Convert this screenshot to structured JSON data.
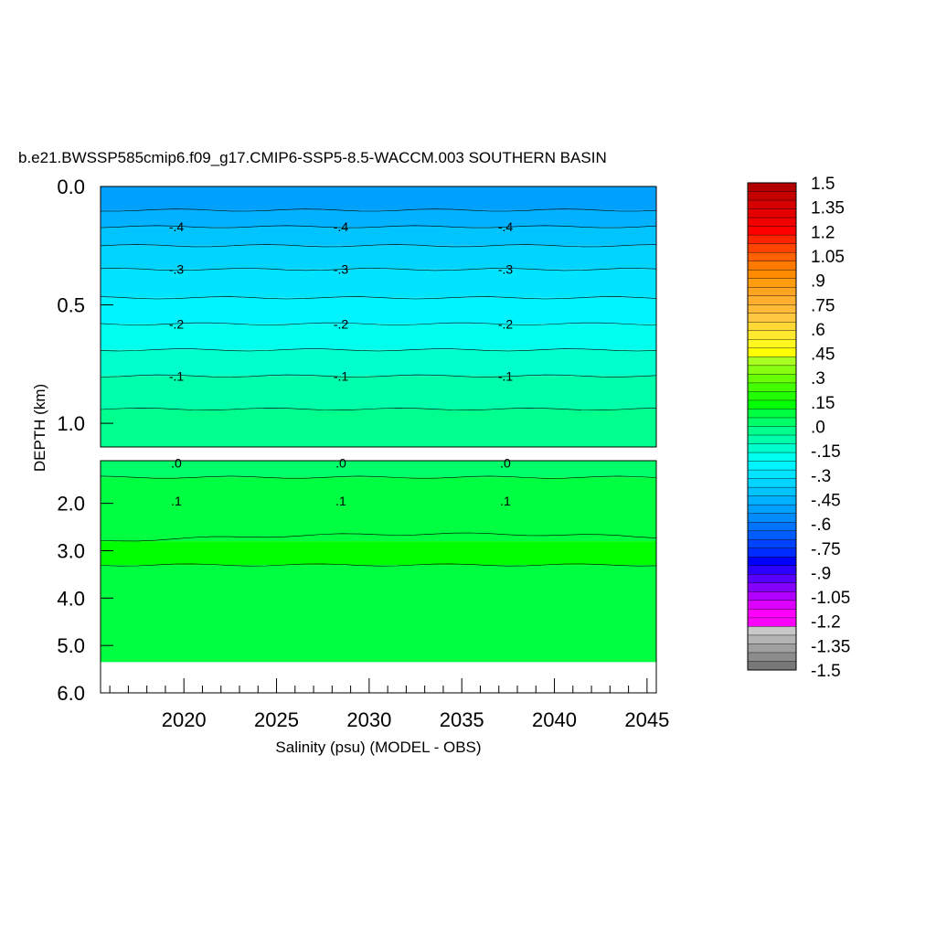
{
  "chart_data": {
    "type": "heatmap",
    "title": "b.e21.BWSSP585cmip6.f09_g17.CMIP6-SSP5-8.5-WACCM.003 SOUTHERN BASIN",
    "xlabel": "Salinity (psu) (MODEL - OBS)",
    "ylabel": "DEPTH (km)",
    "xlim": [
      2015.5,
      2045.5
    ],
    "x_ticks": [
      "2020",
      "2025",
      "2030",
      "2035",
      "2040",
      "2045"
    ],
    "upper_panel": {
      "ylim": [
        0,
        1.1
      ],
      "y_ticks": [
        "0.0",
        "0.5",
        "1.0"
      ]
    },
    "lower_panel": {
      "ylim": [
        1.1,
        6.0
      ],
      "y_ticks": [
        "2.0",
        "3.0",
        "4.0",
        "5.0",
        "6.0"
      ],
      "data_bottom_km": 5.35
    },
    "depth_bands_km": [
      {
        "from": 0.0,
        "to": 0.1,
        "value": -0.5
      },
      {
        "from": 0.1,
        "to": 0.17,
        "value": -0.45
      },
      {
        "from": 0.17,
        "to": 0.25,
        "value": -0.4
      },
      {
        "from": 0.25,
        "to": 0.35,
        "value": -0.35
      },
      {
        "from": 0.35,
        "to": 0.47,
        "value": -0.3
      },
      {
        "from": 0.47,
        "to": 0.58,
        "value": -0.25
      },
      {
        "from": 0.58,
        "to": 0.69,
        "value": -0.2
      },
      {
        "from": 0.69,
        "to": 0.8,
        "value": -0.15
      },
      {
        "from": 0.8,
        "to": 0.94,
        "value": -0.1
      },
      {
        "from": 0.94,
        "to": 1.1,
        "value": -0.05
      },
      {
        "from": 1.1,
        "to": 1.45,
        "value": 0.05
      },
      {
        "from": 1.45,
        "to": 2.8,
        "value": 0.1
      },
      {
        "from": 2.8,
        "to": 3.3,
        "value": 0.15
      },
      {
        "from": 3.3,
        "to": 5.35,
        "value": 0.1
      }
    ],
    "contour_labels": [
      {
        "text": "-.4",
        "depth_km": 0.17
      },
      {
        "text": "-.3",
        "depth_km": 0.35
      },
      {
        "text": "-.2",
        "depth_km": 0.58
      },
      {
        "text": "-.1",
        "depth_km": 0.8
      },
      {
        "text": ".0",
        "depth_km": 1.15
      },
      {
        "text": ".1",
        "depth_km": 1.95
      }
    ],
    "colorbar": {
      "tick_labels": [
        "1.5",
        "1.35",
        "1.2",
        "1.05",
        ".9",
        ".75",
        ".6",
        ".45",
        ".3",
        ".15",
        ".0",
        "-.15",
        "-.3",
        "-.45",
        "-.6",
        "-.75",
        "-.9",
        "-1.05",
        "-1.2",
        "-1.35",
        "-1.5"
      ],
      "colors": [
        "#b20000",
        "#c40000",
        "#d60000",
        "#e40000",
        "#f20000",
        "#ff0000",
        "#ff2400",
        "#ff4400",
        "#ff6000",
        "#ff7800",
        "#ff8c00",
        "#ff9c10",
        "#ffa420",
        "#ffae30",
        "#ffba38",
        "#ffc840",
        "#ffd838",
        "#ffe830",
        "#fff820",
        "#ffff00",
        "#a8ff20",
        "#88ff10",
        "#68ff00",
        "#44ff00",
        "#22ff00",
        "#00ff00",
        "#00ff40",
        "#00ff68",
        "#00ff8c",
        "#00ffaa",
        "#00ffcc",
        "#00ffee",
        "#00f4ff",
        "#00e4ff",
        "#00d4ff",
        "#00c4ff",
        "#00b2ff",
        "#00a0ff",
        "#008cff",
        "#0074ff",
        "#005cff",
        "#0044ff",
        "#002cff",
        "#0000ff",
        "#2c00ff",
        "#5800ff",
        "#8400ff",
        "#b000ff",
        "#dc00ff",
        "#ff00ff",
        "#ff00ff",
        "#c8c8c8",
        "#b4b4b4",
        "#a0a0a0",
        "#8c8c8c",
        "#787878"
      ]
    }
  }
}
